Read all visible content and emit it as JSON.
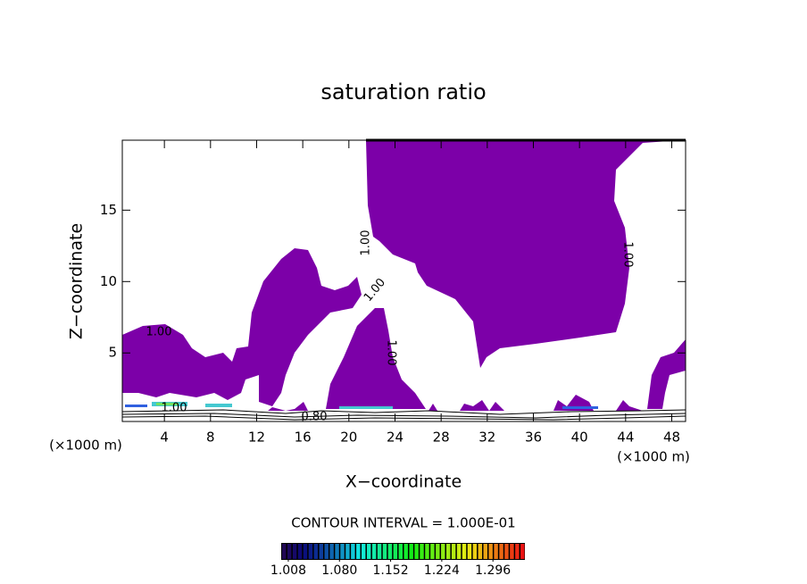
{
  "chart_data": {
    "type": "contour",
    "title": "saturation ratio",
    "x_label": "X−coordinate",
    "y_label": "Z−coordinate",
    "x_unit_label": "(×1000 m)",
    "y_unit_label": "(×1000 m)",
    "xlim": [
      0.35,
      49.2
    ],
    "xticks": [
      4,
      8,
      12,
      16,
      20,
      24,
      28,
      32,
      36,
      40,
      44,
      48
    ],
    "ylim": [
      0.2,
      19.9
    ],
    "yticks": [
      5,
      10,
      15
    ],
    "fill_color": "#7c00a8",
    "contour_labels": [
      "1.00",
      "1.00",
      "1.00",
      "1.00",
      "1.00",
      "1.00",
      "0.80"
    ],
    "contour_interval_label": "CONTOUR INTERVAL = 1.000E-01",
    "colorbar": {
      "clim": [
        0.998,
        1.341
      ],
      "ticks": [
        1.008,
        {
          "value": 1.08,
          "label": "1.080"
        },
        1.152,
        1.224,
        1.296
      ]
    }
  }
}
